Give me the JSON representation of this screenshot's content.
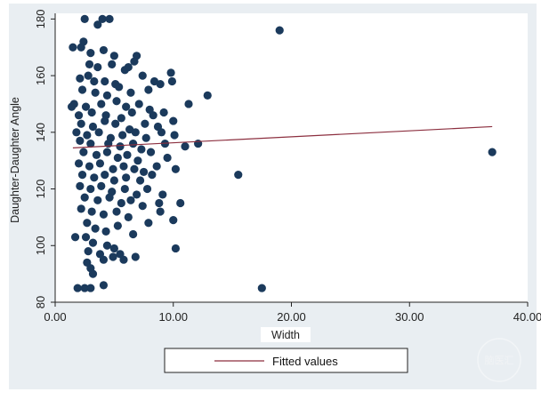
{
  "chart_data": {
    "type": "scatter",
    "title": "",
    "xlabel": "Width",
    "ylabel": "Daughter-Daughter Angle",
    "xlim": [
      0,
      40
    ],
    "ylim": [
      80,
      182
    ],
    "x_ticks": [
      "0.00",
      "10.00",
      "20.00",
      "30.00",
      "40.00"
    ],
    "y_ticks": [
      "80",
      "100",
      "120",
      "140",
      "160",
      "180"
    ],
    "grid": false,
    "legend_position": "bottom",
    "colors": {
      "points": "#1b3a5c",
      "fit_line": "#8c2f3f",
      "background": "#e9eef2",
      "plot_area": "#ffffff"
    },
    "series": [
      {
        "type": "scatter",
        "points": [
          [
            2.5,
            180
          ],
          [
            4.0,
            180
          ],
          [
            4.6,
            180
          ],
          [
            3.6,
            178
          ],
          [
            2.4,
            172
          ],
          [
            2.2,
            170
          ],
          [
            1.5,
            170
          ],
          [
            3.0,
            168
          ],
          [
            4.1,
            169
          ],
          [
            5.0,
            167
          ],
          [
            6.9,
            167
          ],
          [
            6.7,
            165
          ],
          [
            2.9,
            164
          ],
          [
            3.6,
            163
          ],
          [
            4.8,
            164
          ],
          [
            5.9,
            162
          ],
          [
            6.2,
            163
          ],
          [
            9.8,
            161
          ],
          [
            2.1,
            159
          ],
          [
            2.8,
            160
          ],
          [
            3.3,
            158
          ],
          [
            4.2,
            158
          ],
          [
            5.1,
            157
          ],
          [
            7.4,
            160
          ],
          [
            8.4,
            158
          ],
          [
            9.9,
            158
          ],
          [
            2.3,
            155
          ],
          [
            3.4,
            154
          ],
          [
            4.4,
            153
          ],
          [
            5.4,
            156
          ],
          [
            6.4,
            154
          ],
          [
            7.9,
            155
          ],
          [
            8.9,
            157
          ],
          [
            12.9,
            153
          ],
          [
            1.6,
            150
          ],
          [
            2.6,
            149
          ],
          [
            3.9,
            150
          ],
          [
            5.2,
            151
          ],
          [
            6.0,
            149
          ],
          [
            7.1,
            150
          ],
          [
            8.0,
            148
          ],
          [
            11.3,
            150
          ],
          [
            1.4,
            149
          ],
          [
            2.0,
            146
          ],
          [
            3.1,
            147
          ],
          [
            4.3,
            146
          ],
          [
            5.6,
            145
          ],
          [
            6.5,
            147
          ],
          [
            8.3,
            146
          ],
          [
            9.2,
            147
          ],
          [
            2.2,
            143
          ],
          [
            3.2,
            142
          ],
          [
            4.2,
            144
          ],
          [
            5.1,
            143
          ],
          [
            6.3,
            141
          ],
          [
            7.6,
            143
          ],
          [
            8.7,
            142
          ],
          [
            10.0,
            144
          ],
          [
            1.8,
            140
          ],
          [
            2.7,
            139
          ],
          [
            3.7,
            140
          ],
          [
            4.7,
            138
          ],
          [
            5.7,
            139
          ],
          [
            6.8,
            140
          ],
          [
            7.7,
            138
          ],
          [
            9.0,
            140
          ],
          [
            10.1,
            139
          ],
          [
            2.1,
            137
          ],
          [
            3.0,
            136
          ],
          [
            4.5,
            136
          ],
          [
            5.5,
            135
          ],
          [
            6.6,
            136
          ],
          [
            7.3,
            134
          ],
          [
            9.3,
            136
          ],
          [
            11.0,
            135
          ],
          [
            12.1,
            136
          ],
          [
            2.4,
            133
          ],
          [
            3.5,
            132
          ],
          [
            4.4,
            133
          ],
          [
            5.3,
            131
          ],
          [
            6.1,
            132
          ],
          [
            7.0,
            130
          ],
          [
            8.1,
            133
          ],
          [
            9.5,
            131
          ],
          [
            2.0,
            129
          ],
          [
            2.9,
            128
          ],
          [
            3.8,
            129
          ],
          [
            4.9,
            127
          ],
          [
            5.8,
            128
          ],
          [
            6.7,
            127
          ],
          [
            7.5,
            126
          ],
          [
            8.6,
            128
          ],
          [
            10.2,
            127
          ],
          [
            2.3,
            125
          ],
          [
            3.3,
            124
          ],
          [
            4.2,
            125
          ],
          [
            5.0,
            123
          ],
          [
            6.0,
            124
          ],
          [
            7.2,
            123
          ],
          [
            8.2,
            125
          ],
          [
            15.5,
            125
          ],
          [
            37.0,
            133
          ],
          [
            2.1,
            121
          ],
          [
            3.0,
            120
          ],
          [
            3.9,
            121
          ],
          [
            4.8,
            119
          ],
          [
            5.9,
            120
          ],
          [
            6.9,
            118
          ],
          [
            7.8,
            120
          ],
          [
            9.1,
            118
          ],
          [
            2.5,
            117
          ],
          [
            3.6,
            116
          ],
          [
            4.6,
            117
          ],
          [
            5.6,
            115
          ],
          [
            6.4,
            116
          ],
          [
            7.4,
            114
          ],
          [
            8.8,
            115
          ],
          [
            10.6,
            115
          ],
          [
            2.2,
            113
          ],
          [
            3.1,
            112
          ],
          [
            4.1,
            111
          ],
          [
            5.2,
            112
          ],
          [
            6.2,
            110
          ],
          [
            7.9,
            108
          ],
          [
            8.9,
            112
          ],
          [
            10.0,
            109
          ],
          [
            2.7,
            108
          ],
          [
            3.4,
            106
          ],
          [
            4.3,
            105
          ],
          [
            5.3,
            107
          ],
          [
            6.6,
            104
          ],
          [
            2.6,
            103
          ],
          [
            3.2,
            101
          ],
          [
            4.4,
            100
          ],
          [
            5.0,
            99
          ],
          [
            1.7,
            103
          ],
          [
            2.8,
            98
          ],
          [
            3.8,
            97
          ],
          [
            4.9,
            96
          ],
          [
            5.5,
            97
          ],
          [
            6.8,
            96
          ],
          [
            10.2,
            99
          ],
          [
            2.7,
            94
          ],
          [
            3.0,
            92
          ],
          [
            4.1,
            95
          ],
          [
            5.8,
            95
          ],
          [
            3.2,
            90
          ],
          [
            1.9,
            85
          ],
          [
            2.5,
            85
          ],
          [
            3.0,
            85
          ],
          [
            4.1,
            86
          ],
          [
            17.5,
            85
          ],
          [
            19.0,
            176
          ]
        ]
      },
      {
        "type": "line",
        "name": "Fitted values",
        "points": [
          [
            1.5,
            134.5
          ],
          [
            37.0,
            142.0
          ]
        ]
      }
    ]
  },
  "watermark": {
    "text": "脑医汇"
  }
}
